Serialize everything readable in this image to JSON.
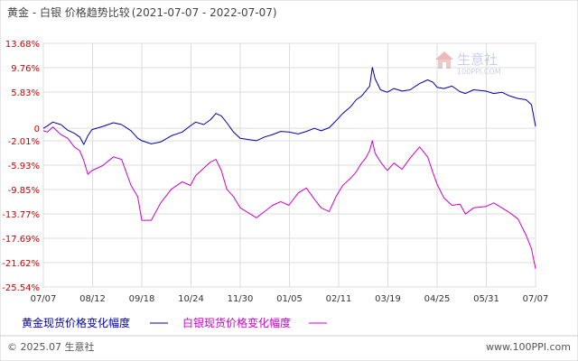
{
  "chart_data": {
    "type": "line",
    "title": "黄金 - 白银 价格趋势比较",
    "subtitle": "(2021-07-07 - 2022-07-07)",
    "x_tick_labels": [
      "07/07",
      "08/12",
      "09/18",
      "10/24",
      "11/30",
      "01/05",
      "02/11",
      "03/19",
      "04/25",
      "05/31",
      "07/07"
    ],
    "y_tick_labels": [
      "13.68%",
      "9.76%",
      "5.83%",
      "0",
      "-2.01%",
      "-5.93%",
      "-9.85%",
      "-13.77%",
      "-17.69%",
      "-21.62%",
      "-25.54%"
    ],
    "y_tick_values": [
      13.68,
      9.76,
      5.83,
      0,
      -2.01,
      -5.93,
      -9.85,
      -13.77,
      -17.69,
      -21.62,
      -25.54
    ],
    "ylim": [
      -25.54,
      13.68
    ],
    "grid": true,
    "legend_position": "bottom-left",
    "x_range": [
      "2021-07-07",
      "2022-07-07"
    ],
    "series": [
      {
        "name": "黄金现货价格变化幅度",
        "color": "#0000aa",
        "points": [
          [
            "2021-07-07",
            0
          ],
          [
            "2021-07-10",
            0.4
          ],
          [
            "2021-07-14",
            1.0
          ],
          [
            "2021-07-20",
            0.6
          ],
          [
            "2021-07-25",
            -0.3
          ],
          [
            "2021-07-30",
            -0.8
          ],
          [
            "2021-08-03",
            -1.4
          ],
          [
            "2021-08-06",
            -2.6
          ],
          [
            "2021-08-09",
            -1.2
          ],
          [
            "2021-08-12",
            -0.2
          ],
          [
            "2021-08-20",
            0.3
          ],
          [
            "2021-08-28",
            0.9
          ],
          [
            "2021-09-03",
            0.6
          ],
          [
            "2021-09-10",
            -0.4
          ],
          [
            "2021-09-15",
            -1.6
          ],
          [
            "2021-09-18",
            -2.0
          ],
          [
            "2021-09-25",
            -2.5
          ],
          [
            "2021-10-02",
            -2.2
          ],
          [
            "2021-10-10",
            -1.2
          ],
          [
            "2021-10-18",
            -0.6
          ],
          [
            "2021-10-24",
            0.4
          ],
          [
            "2021-10-28",
            1.0
          ],
          [
            "2021-11-03",
            0.6
          ],
          [
            "2021-11-08",
            1.4
          ],
          [
            "2021-11-12",
            2.4
          ],
          [
            "2021-11-16",
            2.0
          ],
          [
            "2021-11-20",
            0.9
          ],
          [
            "2021-11-25",
            -0.6
          ],
          [
            "2021-11-30",
            -1.6
          ],
          [
            "2021-12-06",
            -1.8
          ],
          [
            "2021-12-12",
            -2.0
          ],
          [
            "2021-12-18",
            -1.4
          ],
          [
            "2021-12-24",
            -1.0
          ],
          [
            "2021-12-30",
            -0.5
          ],
          [
            "2022-01-05",
            -0.6
          ],
          [
            "2022-01-12",
            -0.9
          ],
          [
            "2022-01-18",
            -0.5
          ],
          [
            "2022-01-24",
            0.0
          ],
          [
            "2022-01-29",
            -0.4
          ],
          [
            "2022-02-04",
            0.1
          ],
          [
            "2022-02-09",
            1.2
          ],
          [
            "2022-02-14",
            2.4
          ],
          [
            "2022-02-20",
            3.5
          ],
          [
            "2022-02-24",
            4.6
          ],
          [
            "2022-02-28",
            5.2
          ],
          [
            "2022-03-03",
            6.0
          ],
          [
            "2022-03-06",
            6.8
          ],
          [
            "2022-03-08",
            9.8
          ],
          [
            "2022-03-10",
            8.0
          ],
          [
            "2022-03-14",
            6.2
          ],
          [
            "2022-03-19",
            5.8
          ],
          [
            "2022-03-24",
            6.4
          ],
          [
            "2022-03-30",
            6.0
          ],
          [
            "2022-04-05",
            6.2
          ],
          [
            "2022-04-12",
            7.2
          ],
          [
            "2022-04-18",
            7.8
          ],
          [
            "2022-04-22",
            7.4
          ],
          [
            "2022-04-25",
            6.6
          ],
          [
            "2022-04-30",
            6.4
          ],
          [
            "2022-05-06",
            6.8
          ],
          [
            "2022-05-12",
            5.9
          ],
          [
            "2022-05-16",
            5.6
          ],
          [
            "2022-05-22",
            6.2
          ],
          [
            "2022-05-31",
            6.0
          ],
          [
            "2022-06-06",
            5.6
          ],
          [
            "2022-06-12",
            5.8
          ],
          [
            "2022-06-18",
            5.2
          ],
          [
            "2022-06-24",
            4.8
          ],
          [
            "2022-06-30",
            4.6
          ],
          [
            "2022-07-04",
            3.8
          ],
          [
            "2022-07-07",
            0.3
          ]
        ]
      },
      {
        "name": "白银现货价格变化幅度",
        "color": "#cc00cc",
        "points": [
          [
            "2021-07-07",
            -0.4
          ],
          [
            "2021-07-10",
            -0.6
          ],
          [
            "2021-07-14",
            0.2
          ],
          [
            "2021-07-20",
            -1.0
          ],
          [
            "2021-07-25",
            -1.6
          ],
          [
            "2021-07-30",
            -3.0
          ],
          [
            "2021-08-03",
            -3.6
          ],
          [
            "2021-08-06",
            -5.2
          ],
          [
            "2021-08-09",
            -7.4
          ],
          [
            "2021-08-12",
            -6.8
          ],
          [
            "2021-08-20",
            -6.0
          ],
          [
            "2021-08-28",
            -4.6
          ],
          [
            "2021-09-03",
            -5.0
          ],
          [
            "2021-09-10",
            -9.2
          ],
          [
            "2021-09-15",
            -11.0
          ],
          [
            "2021-09-18",
            -14.8
          ],
          [
            "2021-09-25",
            -14.8
          ],
          [
            "2021-10-02",
            -12.0
          ],
          [
            "2021-10-10",
            -9.8
          ],
          [
            "2021-10-18",
            -8.6
          ],
          [
            "2021-10-24",
            -9.2
          ],
          [
            "2021-10-28",
            -7.6
          ],
          [
            "2021-11-03",
            -6.4
          ],
          [
            "2021-11-08",
            -5.4
          ],
          [
            "2021-11-12",
            -5.0
          ],
          [
            "2021-11-16",
            -6.8
          ],
          [
            "2021-11-20",
            -9.8
          ],
          [
            "2021-11-25",
            -11.0
          ],
          [
            "2021-11-30",
            -12.8
          ],
          [
            "2021-12-06",
            -13.6
          ],
          [
            "2021-12-12",
            -14.4
          ],
          [
            "2021-12-18",
            -13.4
          ],
          [
            "2021-12-24",
            -12.4
          ],
          [
            "2021-12-30",
            -11.8
          ],
          [
            "2022-01-05",
            -12.4
          ],
          [
            "2022-01-12",
            -10.4
          ],
          [
            "2022-01-18",
            -9.6
          ],
          [
            "2022-01-24",
            -11.4
          ],
          [
            "2022-01-29",
            -12.8
          ],
          [
            "2022-02-04",
            -13.4
          ],
          [
            "2022-02-09",
            -11.0
          ],
          [
            "2022-02-14",
            -9.2
          ],
          [
            "2022-02-20",
            -8.0
          ],
          [
            "2022-02-24",
            -7.0
          ],
          [
            "2022-02-28",
            -5.6
          ],
          [
            "2022-03-03",
            -4.8
          ],
          [
            "2022-03-06",
            -3.6
          ],
          [
            "2022-03-08",
            -2.0
          ],
          [
            "2022-03-10",
            -4.0
          ],
          [
            "2022-03-14",
            -5.4
          ],
          [
            "2022-03-19",
            -6.8
          ],
          [
            "2022-03-24",
            -5.6
          ],
          [
            "2022-03-30",
            -6.6
          ],
          [
            "2022-04-05",
            -4.8
          ],
          [
            "2022-04-12",
            -3.0
          ],
          [
            "2022-04-18",
            -4.6
          ],
          [
            "2022-04-22",
            -7.2
          ],
          [
            "2022-04-25",
            -9.0
          ],
          [
            "2022-04-30",
            -11.2
          ],
          [
            "2022-05-06",
            -12.4
          ],
          [
            "2022-05-12",
            -12.2
          ],
          [
            "2022-05-16",
            -13.8
          ],
          [
            "2022-05-22",
            -12.8
          ],
          [
            "2022-05-31",
            -12.6
          ],
          [
            "2022-06-06",
            -12.0
          ],
          [
            "2022-06-12",
            -12.8
          ],
          [
            "2022-06-18",
            -13.6
          ],
          [
            "2022-06-24",
            -14.6
          ],
          [
            "2022-06-30",
            -17.2
          ],
          [
            "2022-07-04",
            -19.4
          ],
          [
            "2022-07-07",
            -22.6
          ]
        ]
      }
    ]
  },
  "watermark": {
    "brand_text": "生意社",
    "url_text": "100PPI.COM",
    "icon": "house-logo-icon"
  },
  "footer": {
    "copyright": "© 2025.07 生意社",
    "url": "www.100PPI.com"
  },
  "colors": {
    "grid": "#dddddd",
    "axis": "#999999",
    "frame": "#cccccc"
  }
}
